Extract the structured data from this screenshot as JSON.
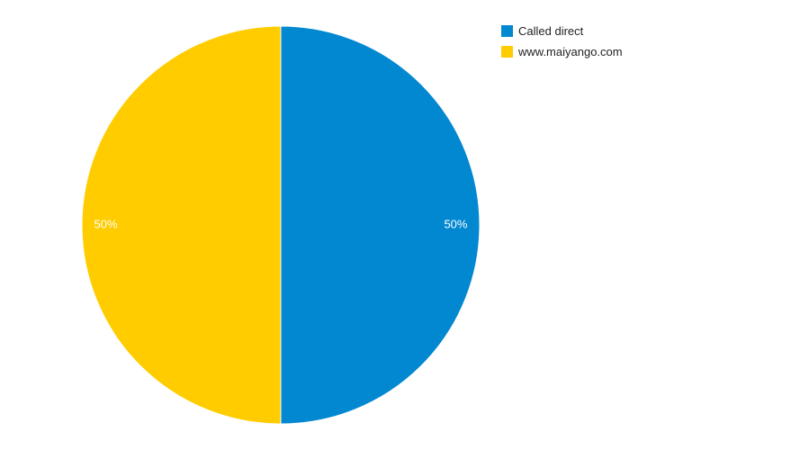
{
  "chart_data": {
    "type": "pie",
    "title": "",
    "legend_position": "top-right",
    "series": [
      {
        "name": "Called direct",
        "value": 50,
        "label": "50%",
        "color": "#0288d1"
      },
      {
        "name": "www.maiyango.com",
        "value": 50,
        "label": "50%",
        "color": "#ffcc00"
      }
    ]
  }
}
